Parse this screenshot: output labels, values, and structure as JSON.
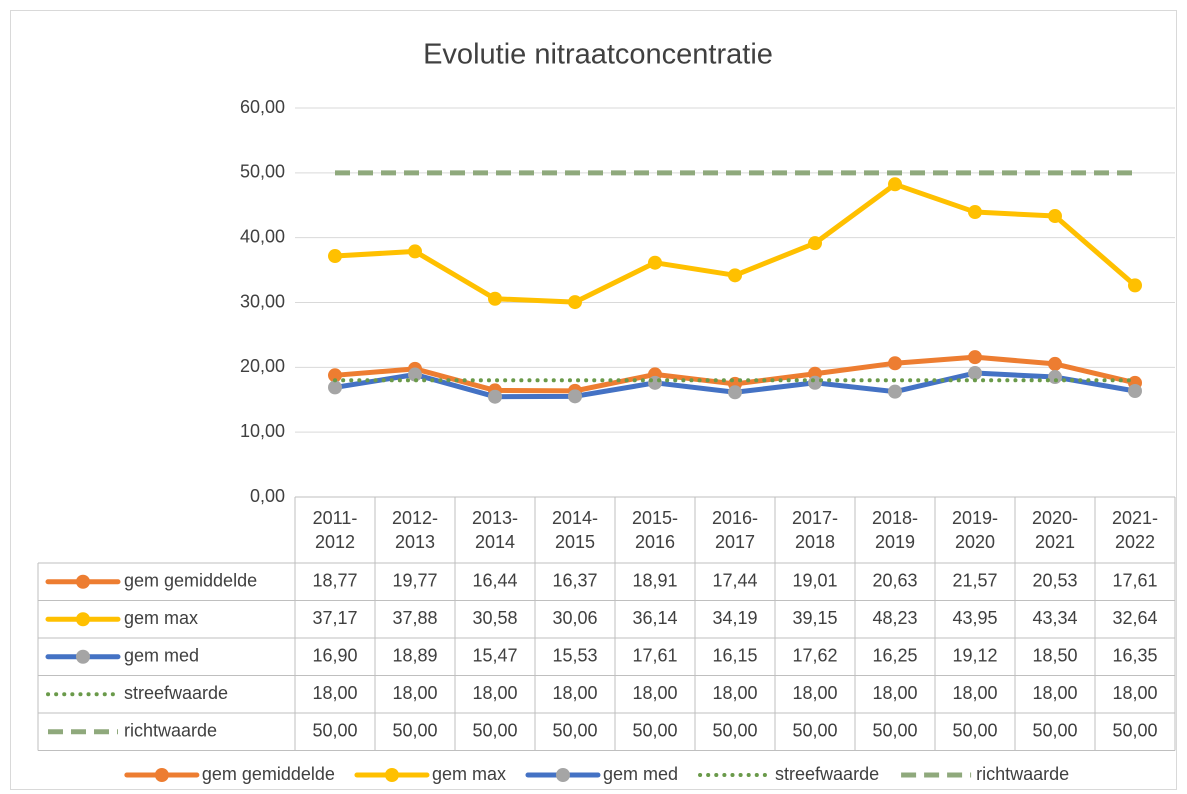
{
  "chart_data": {
    "type": "line",
    "title": "Evolutie nitraatconcentratie",
    "categories": [
      "2011-2012",
      "2012-2013",
      "2013-2014",
      "2014-2015",
      "2015-2016",
      "2016-2017",
      "2017-2018",
      "2018-2019",
      "2019-2020",
      "2020-2021",
      "2021-2022"
    ],
    "ylim": [
      0,
      60
    ],
    "yticks": [
      {
        "value": 0,
        "label": "0,00"
      },
      {
        "value": 10,
        "label": "10,00"
      },
      {
        "value": 20,
        "label": "20,00"
      },
      {
        "value": 30,
        "label": "30,00"
      },
      {
        "value": 40,
        "label": "40,00"
      },
      {
        "value": 50,
        "label": "50,00"
      },
      {
        "value": 60,
        "label": "60,00"
      }
    ],
    "grid": true,
    "legend": "bottom",
    "series": [
      {
        "name": "gem gemiddelde",
        "color": "#ed7d31",
        "marker_color": "#ed7d31",
        "line_style": "solid",
        "values": [
          18.77,
          19.77,
          16.44,
          16.37,
          18.91,
          17.44,
          19.01,
          20.63,
          21.57,
          20.53,
          17.61
        ],
        "value_labels": [
          "18,77",
          "19,77",
          "16,44",
          "16,37",
          "18,91",
          "17,44",
          "19,01",
          "20,63",
          "21,57",
          "20,53",
          "17,61"
        ]
      },
      {
        "name": "gem max",
        "color": "#ffc000",
        "marker_color": "#ffc000",
        "line_style": "solid",
        "values": [
          37.17,
          37.88,
          30.58,
          30.06,
          36.14,
          34.19,
          39.15,
          48.23,
          43.95,
          43.34,
          32.64
        ],
        "value_labels": [
          "37,17",
          "37,88",
          "30,58",
          "30,06",
          "36,14",
          "34,19",
          "39,15",
          "48,23",
          "43,95",
          "43,34",
          "32,64"
        ]
      },
      {
        "name": "gem med",
        "color": "#4472c4",
        "marker_color": "#a5a5a5",
        "line_style": "solid",
        "values": [
          16.9,
          18.89,
          15.47,
          15.53,
          17.61,
          16.15,
          17.62,
          16.25,
          19.12,
          18.5,
          16.35
        ],
        "value_labels": [
          "16,90",
          "18,89",
          "15,47",
          "15,53",
          "17,61",
          "16,15",
          "17,62",
          "16,25",
          "19,12",
          "18,50",
          "16,35"
        ]
      },
      {
        "name": "streefwaarde",
        "color": "#6a9a4a",
        "line_style": "dot",
        "values": [
          18,
          18,
          18,
          18,
          18,
          18,
          18,
          18,
          18,
          18,
          18
        ],
        "value_labels": [
          "18,00",
          "18,00",
          "18,00",
          "18,00",
          "18,00",
          "18,00",
          "18,00",
          "18,00",
          "18,00",
          "18,00",
          "18,00"
        ]
      },
      {
        "name": "richtwaarde",
        "color": "#8fa97c",
        "line_style": "dash",
        "values": [
          50,
          50,
          50,
          50,
          50,
          50,
          50,
          50,
          50,
          50,
          50
        ],
        "value_labels": [
          "50,00",
          "50,00",
          "50,00",
          "50,00",
          "50,00",
          "50,00",
          "50,00",
          "50,00",
          "50,00",
          "50,00",
          "50,00"
        ]
      }
    ]
  }
}
